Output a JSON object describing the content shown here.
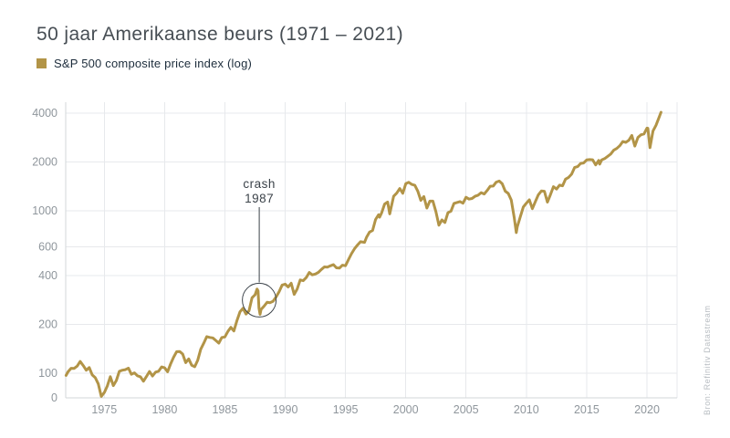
{
  "title": "50 jaar Amerikaanse beurs (1971 – 2021)",
  "legend": {
    "label": "S&P 500 composite price index (log)",
    "swatch_color": "#b29447"
  },
  "source_note": "Bron: Refinitiv Datastream",
  "colors": {
    "accent_gold": "#b29447",
    "title_text": "#474e54",
    "legend_text": "#1c2c3b",
    "axis_label": "#8f969c",
    "gridline": "#e7e9ec",
    "axis_line": "#d3d7da",
    "annotation": "#3c434a"
  },
  "chart_data": {
    "type": "line",
    "title": "50 jaar Amerikaanse beurs (1971 – 2021)",
    "xlabel": "",
    "ylabel": "",
    "y_scale": "log",
    "grid": true,
    "legend_position": "top-left",
    "xlim": [
      1971.8,
      2022.5
    ],
    "ylim": [
      70,
      4700
    ],
    "x_ticks": [
      1975,
      1980,
      1985,
      1990,
      1995,
      2000,
      2005,
      2010,
      2015,
      2020
    ],
    "y_ticks": [
      0,
      100,
      200,
      400,
      600,
      1000,
      2000,
      4000
    ],
    "annotation": {
      "lines": [
        "crash",
        "1987"
      ],
      "x": 1987.85,
      "value": 282
    },
    "series": [
      {
        "name": "S&P 500 composite price index (log)",
        "color": "#b29447",
        "points": [
          [
            1971.83,
            97
          ],
          [
            1972.0,
            102.1
          ],
          [
            1972.25,
            107.2
          ],
          [
            1972.5,
            107.1
          ],
          [
            1972.75,
            110.6
          ],
          [
            1973.0,
            118.1
          ],
          [
            1973.25,
            111.5
          ],
          [
            1973.5,
            104.3
          ],
          [
            1973.75,
            108.4
          ],
          [
            1974.0,
            97.6
          ],
          [
            1974.25,
            93.9
          ],
          [
            1974.5,
            86.0
          ],
          [
            1974.75,
            72.0
          ],
          [
            1975.0,
            76.0
          ],
          [
            1975.25,
            83.4
          ],
          [
            1975.5,
            95.2
          ],
          [
            1975.75,
            83.9
          ],
          [
            1976.0,
            90.2
          ],
          [
            1976.25,
            102.8
          ],
          [
            1976.5,
            104.3
          ],
          [
            1976.75,
            105.2
          ],
          [
            1977.0,
            107.5
          ],
          [
            1977.25,
            98.4
          ],
          [
            1977.5,
            100.5
          ],
          [
            1977.75,
            96.5
          ],
          [
            1978.0,
            95.1
          ],
          [
            1978.25,
            89.2
          ],
          [
            1978.5,
            95.5
          ],
          [
            1978.75,
            102.5
          ],
          [
            1979.0,
            96.1
          ],
          [
            1979.25,
            101.6
          ],
          [
            1979.5,
            102.9
          ],
          [
            1979.75,
            109.3
          ],
          [
            1980.0,
            107.9
          ],
          [
            1980.25,
            102.1
          ],
          [
            1980.5,
            114.2
          ],
          [
            1980.75,
            125.5
          ],
          [
            1981.0,
            135.8
          ],
          [
            1981.25,
            136.0
          ],
          [
            1981.5,
            131.2
          ],
          [
            1981.75,
            116.2
          ],
          [
            1982.0,
            122.6
          ],
          [
            1982.25,
            111.9
          ],
          [
            1982.5,
            109.6
          ],
          [
            1982.75,
            120.4
          ],
          [
            1983.0,
            140.6
          ],
          [
            1983.25,
            153.0
          ],
          [
            1983.5,
            168.1
          ],
          [
            1983.75,
            166.1
          ],
          [
            1984.0,
            164.9
          ],
          [
            1984.25,
            159.2
          ],
          [
            1984.5,
            153.2
          ],
          [
            1984.75,
            166.1
          ],
          [
            1985.0,
            167.2
          ],
          [
            1985.25,
            180.7
          ],
          [
            1985.5,
            191.8
          ],
          [
            1985.75,
            182.1
          ],
          [
            1986.0,
            211.3
          ],
          [
            1986.25,
            238.9
          ],
          [
            1986.5,
            250.8
          ],
          [
            1986.75,
            231.3
          ],
          [
            1987.0,
            242.2
          ],
          [
            1987.25,
            291.7
          ],
          [
            1987.5,
            304.0
          ],
          [
            1987.67,
            329.8
          ],
          [
            1987.75,
            321.8
          ],
          [
            1987.83,
            251.8
          ],
          [
            1987.92,
            230.3
          ],
          [
            1988.0,
            247.1
          ],
          [
            1988.25,
            258.9
          ],
          [
            1988.5,
            273.5
          ],
          [
            1988.75,
            271.9
          ],
          [
            1989.0,
            277.7
          ],
          [
            1989.25,
            294.9
          ],
          [
            1989.5,
            318.0
          ],
          [
            1989.75,
            349.2
          ],
          [
            1990.0,
            353.4
          ],
          [
            1990.25,
            339.9
          ],
          [
            1990.5,
            358.0
          ],
          [
            1990.75,
            306.1
          ],
          [
            1991.0,
            330.2
          ],
          [
            1991.25,
            375.2
          ],
          [
            1991.5,
            371.2
          ],
          [
            1991.75,
            387.9
          ],
          [
            1992.0,
            417.1
          ],
          [
            1992.25,
            403.7
          ],
          [
            1992.5,
            408.1
          ],
          [
            1992.75,
            417.8
          ],
          [
            1993.0,
            435.7
          ],
          [
            1993.25,
            451.7
          ],
          [
            1993.5,
            450.5
          ],
          [
            1993.75,
            458.9
          ],
          [
            1994.0,
            466.5
          ],
          [
            1994.25,
            445.8
          ],
          [
            1994.5,
            444.3
          ],
          [
            1994.75,
            462.7
          ],
          [
            1995.0,
            459.3
          ],
          [
            1995.25,
            500.7
          ],
          [
            1995.5,
            544.8
          ],
          [
            1995.75,
            584.4
          ],
          [
            1996.0,
            615.9
          ],
          [
            1996.25,
            645.5
          ],
          [
            1996.58,
            639.9
          ],
          [
            1996.75,
            687.3
          ],
          [
            1997.0,
            740.7
          ],
          [
            1997.25,
            757.1
          ],
          [
            1997.5,
            885.1
          ],
          [
            1997.75,
            947.3
          ],
          [
            1997.83,
            914.6
          ],
          [
            1998.0,
            970.4
          ],
          [
            1998.25,
            1101.8
          ],
          [
            1998.5,
            1133.8
          ],
          [
            1998.67,
            957.3
          ],
          [
            1998.75,
            1017.0
          ],
          [
            1999.0,
            1229.2
          ],
          [
            1999.25,
            1286.4
          ],
          [
            1999.5,
            1372.7
          ],
          [
            1999.75,
            1282.7
          ],
          [
            2000.0,
            1469.3
          ],
          [
            2000.25,
            1498.6
          ],
          [
            2000.5,
            1454.6
          ],
          [
            2000.75,
            1436.5
          ],
          [
            2001.0,
            1320.3
          ],
          [
            2001.25,
            1160.3
          ],
          [
            2001.5,
            1224.4
          ],
          [
            2001.75,
            1040.9
          ],
          [
            2002.0,
            1148.1
          ],
          [
            2002.25,
            1147.4
          ],
          [
            2002.5,
            989.8
          ],
          [
            2002.75,
            815.3
          ],
          [
            2003.0,
            879.8
          ],
          [
            2003.25,
            848.2
          ],
          [
            2003.5,
            974.5
          ],
          [
            2003.75,
            996.0
          ],
          [
            2004.0,
            1111.9
          ],
          [
            2004.25,
            1126.2
          ],
          [
            2004.5,
            1140.8
          ],
          [
            2004.75,
            1114.6
          ],
          [
            2005.0,
            1211.9
          ],
          [
            2005.25,
            1180.6
          ],
          [
            2005.5,
            1191.3
          ],
          [
            2005.75,
            1228.8
          ],
          [
            2006.0,
            1248.3
          ],
          [
            2006.25,
            1294.9
          ],
          [
            2006.5,
            1270.2
          ],
          [
            2006.75,
            1335.8
          ],
          [
            2007.0,
            1418.3
          ],
          [
            2007.25,
            1420.9
          ],
          [
            2007.5,
            1503.4
          ],
          [
            2007.75,
            1526.8
          ],
          [
            2008.0,
            1468.4
          ],
          [
            2008.25,
            1322.7
          ],
          [
            2008.5,
            1280.0
          ],
          [
            2008.75,
            1166.4
          ],
          [
            2009.0,
            903.3
          ],
          [
            2009.17,
            735.1
          ],
          [
            2009.25,
            797.9
          ],
          [
            2009.5,
            919.3
          ],
          [
            2009.75,
            1057.1
          ],
          [
            2010.0,
            1115.1
          ],
          [
            2010.25,
            1169.4
          ],
          [
            2010.5,
            1030.7
          ],
          [
            2010.75,
            1141.2
          ],
          [
            2011.0,
            1257.6
          ],
          [
            2011.25,
            1325.8
          ],
          [
            2011.5,
            1320.6
          ],
          [
            2011.75,
            1131.4
          ],
          [
            2012.0,
            1257.6
          ],
          [
            2012.25,
            1408.5
          ],
          [
            2012.5,
            1362.2
          ],
          [
            2012.75,
            1440.7
          ],
          [
            2013.0,
            1426.2
          ],
          [
            2013.25,
            1569.2
          ],
          [
            2013.5,
            1606.3
          ],
          [
            2013.75,
            1681.6
          ],
          [
            2014.0,
            1848.4
          ],
          [
            2014.25,
            1872.3
          ],
          [
            2014.5,
            1960.2
          ],
          [
            2014.75,
            1972.3
          ],
          [
            2015.0,
            2058.9
          ],
          [
            2015.25,
            2067.9
          ],
          [
            2015.5,
            2063.1
          ],
          [
            2015.75,
            1920.0
          ],
          [
            2016.0,
            2043.9
          ],
          [
            2016.08,
            1940.2
          ],
          [
            2016.25,
            2059.7
          ],
          [
            2016.5,
            2098.9
          ],
          [
            2016.75,
            2168.3
          ],
          [
            2017.0,
            2238.8
          ],
          [
            2017.25,
            2362.7
          ],
          [
            2017.5,
            2423.4
          ],
          [
            2017.75,
            2519.4
          ],
          [
            2018.0,
            2673.6
          ],
          [
            2018.25,
            2640.9
          ],
          [
            2018.5,
            2718.4
          ],
          [
            2018.75,
            2914.0
          ],
          [
            2019.0,
            2506.9
          ],
          [
            2019.25,
            2834.4
          ],
          [
            2019.5,
            2941.8
          ],
          [
            2019.75,
            2976.7
          ],
          [
            2020.0,
            3230.8
          ],
          [
            2020.08,
            3225.5
          ],
          [
            2020.25,
            2450.0
          ],
          [
            2020.5,
            3100.3
          ],
          [
            2020.75,
            3363.0
          ],
          [
            2021.0,
            3756.1
          ],
          [
            2021.17,
            4050.0
          ]
        ]
      }
    ]
  }
}
